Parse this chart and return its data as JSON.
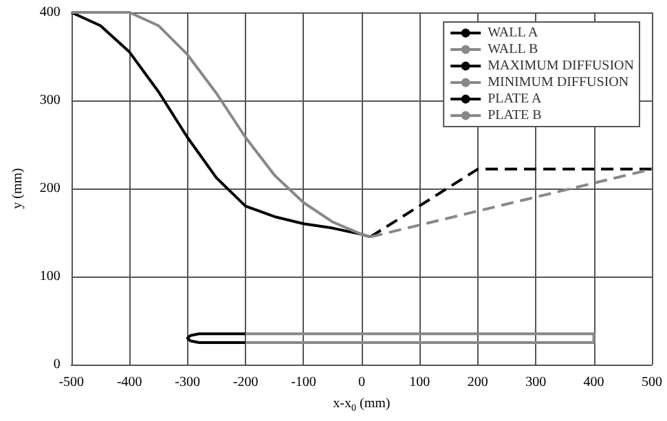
{
  "chart_data": {
    "type": "line",
    "xlabel": "x-x$_{0}$ (mm)",
    "ylabel": "y (mm)",
    "xlim": [
      -500,
      500
    ],
    "xticks": [
      -500,
      -400,
      -300,
      -200,
      -100,
      0,
      100,
      200,
      300,
      400,
      500
    ],
    "ylim": [
      0,
      400
    ],
    "yticks": [
      0,
      100,
      200,
      300,
      400
    ],
    "grid": true,
    "legend": "top right",
    "marker": "none",
    "series": [
      {
        "name": "WALL A",
        "color": "#000000",
        "line_style": "solid",
        "x": [
          -500,
          -450,
          -400,
          -350,
          -300,
          -250,
          -200,
          -150,
          -100,
          -50,
          0,
          15
        ],
        "values": [
          400,
          385,
          355,
          310,
          258,
          212,
          180,
          168,
          160,
          155,
          148,
          145
        ]
      },
      {
        "name": "WALL B",
        "color": "#888888",
        "line_style": "solid",
        "x": [
          -500,
          -400,
          -350,
          -300,
          -250,
          -200,
          -150,
          -100,
          -50,
          0,
          15
        ],
        "values": [
          400,
          400,
          385,
          352,
          308,
          258,
          215,
          184,
          162,
          148,
          145
        ]
      },
      {
        "name": "MAXIMUM DIFFUSION",
        "color": "#000000",
        "line_style": "dashed",
        "x": [
          15,
          200,
          500
        ],
        "values": [
          145,
          222,
          222
        ]
      },
      {
        "name": "MINIMUM DIFFUSION",
        "color": "#888888",
        "line_style": "dashed",
        "x": [
          15,
          500
        ],
        "values": [
          145,
          222
        ]
      },
      {
        "name": "PLATE A",
        "color": "#000000",
        "line_style": "solid",
        "x": [
          -200,
          -280,
          -295,
          -300,
          -295,
          -280,
          -200
        ],
        "values": [
          35,
          35,
          33,
          30,
          27,
          25,
          25
        ]
      },
      {
        "name": "PLATE B",
        "color": "#888888",
        "line_style": "solid",
        "x": [
          -200,
          400,
          400,
          -200
        ],
        "values": [
          35,
          35,
          25,
          25
        ]
      }
    ]
  }
}
